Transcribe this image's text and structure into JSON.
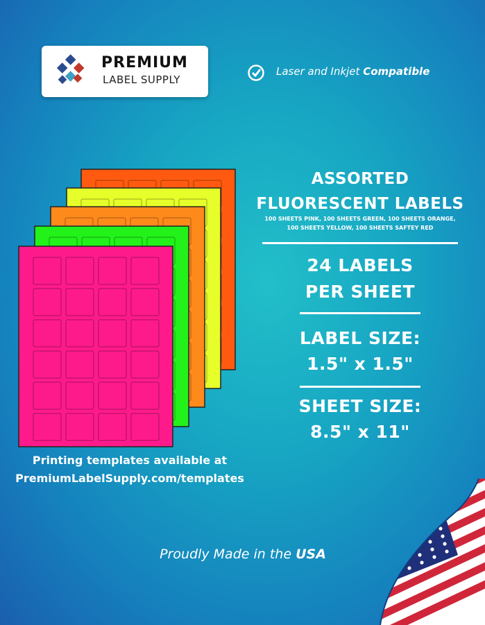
{
  "logo": {
    "line1": "PREMIUM",
    "line2": "LABEL SUPPLY"
  },
  "compat": {
    "text": "Laser and Inkjet",
    "emphasis": "Compatible"
  },
  "product": {
    "title1": "ASSORTED",
    "title2": "FLUORESCENT LABELS",
    "detail1": "100 SHEETS PINK, 100 SHEETS GREEN, 100 SHEETS ORANGE,",
    "detail2": "100 SHEETS YELLOW, 100 SHEETS SAFTEY RED"
  },
  "specs": [
    {
      "line1": "24 LABELS",
      "line2": "PER SHEET"
    },
    {
      "line1": "LABEL SIZE:",
      "line2": "1.5\" x 1.5\""
    },
    {
      "line1": "SHEET SIZE:",
      "line2": "8.5\" x 11\""
    }
  ],
  "templates": {
    "line1": "Printing templates available at",
    "line2": "PremiumLabelSupply.com/templates"
  },
  "footer": {
    "text": "Proudly Made in the",
    "emphasis": "USA"
  }
}
